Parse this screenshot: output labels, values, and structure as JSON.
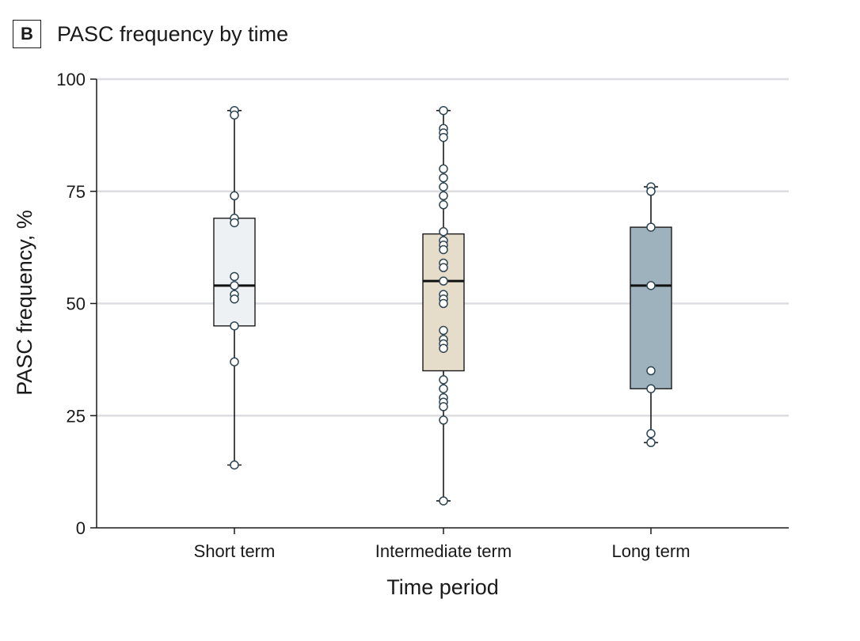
{
  "panel": {
    "letter": "B",
    "title": "PASC frequency by time"
  },
  "chart_data": {
    "type": "box",
    "title": "PASC frequency by time",
    "xlabel": "Time period",
    "ylabel": "PASC frequency, %",
    "ylim": [
      0,
      100
    ],
    "yticks": [
      0,
      25,
      50,
      75,
      100
    ],
    "grid": true,
    "categories": [
      "Short term",
      "Intermediate term",
      "Long term"
    ],
    "series": [
      {
        "category": "Short term",
        "fill": "#edf1f4",
        "min": 14,
        "q1": 45,
        "median": 54,
        "q3": 69,
        "max": 93,
        "points": [
          93,
          92,
          74,
          69,
          68,
          56,
          54,
          52,
          51,
          45,
          37,
          14
        ]
      },
      {
        "category": "Intermediate term",
        "fill": "#e5dcc9",
        "min": 6,
        "q1": 35,
        "median": 55,
        "q3": 65.5,
        "max": 93,
        "points": [
          93,
          89,
          88,
          87,
          80,
          78,
          76,
          74,
          72,
          66,
          64,
          63,
          62,
          59,
          58,
          55,
          52,
          51,
          50,
          44,
          42,
          41,
          40,
          33,
          31,
          29,
          28,
          27,
          24,
          6
        ]
      },
      {
        "category": "Long term",
        "fill": "#9eb2bd",
        "min": 19,
        "q1": 31,
        "median": 54,
        "q3": 67,
        "max": 76,
        "points": [
          76,
          75,
          67,
          54,
          35,
          31,
          21,
          19
        ]
      }
    ],
    "colors": {
      "grid": "#dcdde2",
      "axis": "#1a1a1a",
      "point_fill": "#ffffff",
      "point_stroke": "#2f4552"
    }
  }
}
